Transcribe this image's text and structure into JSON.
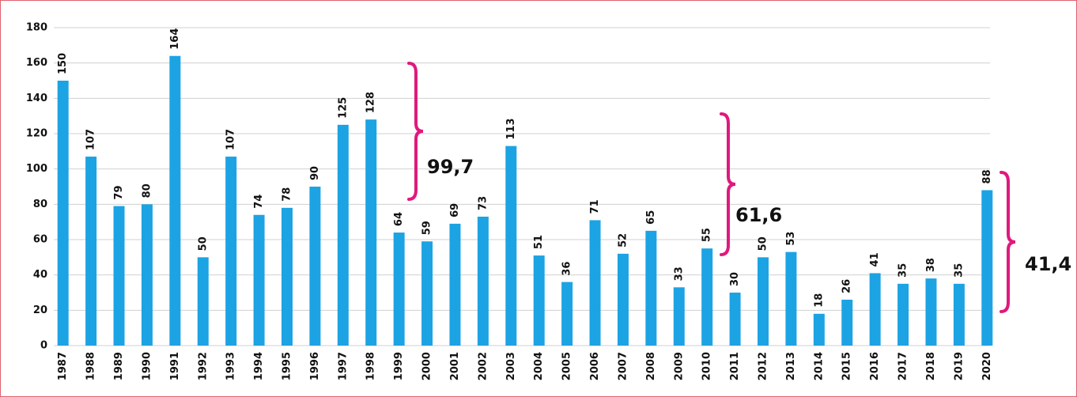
{
  "chart_data": {
    "type": "bar",
    "categories": [
      "1987",
      "1988",
      "1989",
      "1990",
      "1991",
      "1992",
      "1993",
      "1994",
      "1995",
      "1996",
      "1997",
      "1998",
      "1999",
      "2000",
      "2001",
      "2002",
      "2003",
      "2004",
      "2005",
      "2006",
      "2007",
      "2008",
      "2009",
      "2010",
      "2011",
      "2012",
      "2013",
      "2014",
      "2015",
      "2016",
      "2017",
      "2018",
      "2019",
      "2020"
    ],
    "values": [
      150,
      107,
      79,
      80,
      164,
      50,
      107,
      74,
      78,
      90,
      125,
      128,
      64,
      59,
      69,
      73,
      113,
      51,
      36,
      71,
      52,
      65,
      33,
      55,
      30,
      50,
      53,
      18,
      26,
      41,
      35,
      38,
      35,
      88
    ],
    "color": "#1ca3e3",
    "ylim": [
      0,
      180
    ],
    "yticks": [
      0,
      20,
      40,
      60,
      80,
      100,
      120,
      140,
      160,
      180
    ],
    "grid": true,
    "annotations": [
      "99,7",
      "61,6",
      "41,4"
    ]
  }
}
